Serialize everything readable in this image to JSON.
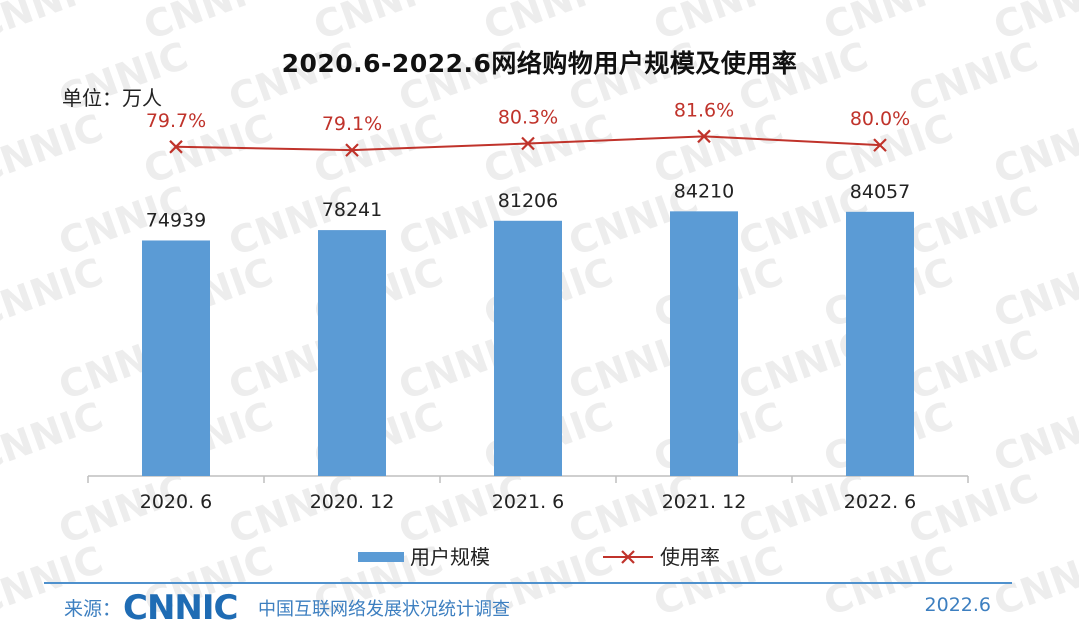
{
  "title": "2020.6-2022.6网络购物用户规模及使用率",
  "unit_label": "单位：万人",
  "watermark_text": "CNNIC",
  "chart_data": {
    "type": "bar",
    "categories": [
      "2020. 6",
      "2020. 12",
      "2021. 6",
      "2021. 12",
      "2022. 6"
    ],
    "series": [
      {
        "name": "用户规模",
        "kind": "bar",
        "values": [
          74939,
          78241,
          81206,
          84210,
          84057
        ],
        "color": "#5b9bd5"
      },
      {
        "name": "使用率",
        "kind": "line",
        "values": [
          79.7,
          79.1,
          80.3,
          81.6,
          80.0
        ],
        "labels": [
          "79.7%",
          "79.1%",
          "80.3%",
          "81.6%",
          "80.0%"
        ],
        "color": "#c0332b"
      }
    ],
    "bar_labels": [
      "74939",
      "78241",
      "81206",
      "84210",
      "84057"
    ],
    "ylim": [
      0,
      140000
    ],
    "rate_ylim": [
      20,
      90
    ],
    "grid": false,
    "legend_position": "bottom"
  },
  "footer": {
    "source_label": "来源：",
    "logo_text": "CNNIC",
    "source_org": "中国互联网络发展状况统计调查",
    "date": "2022.6"
  }
}
